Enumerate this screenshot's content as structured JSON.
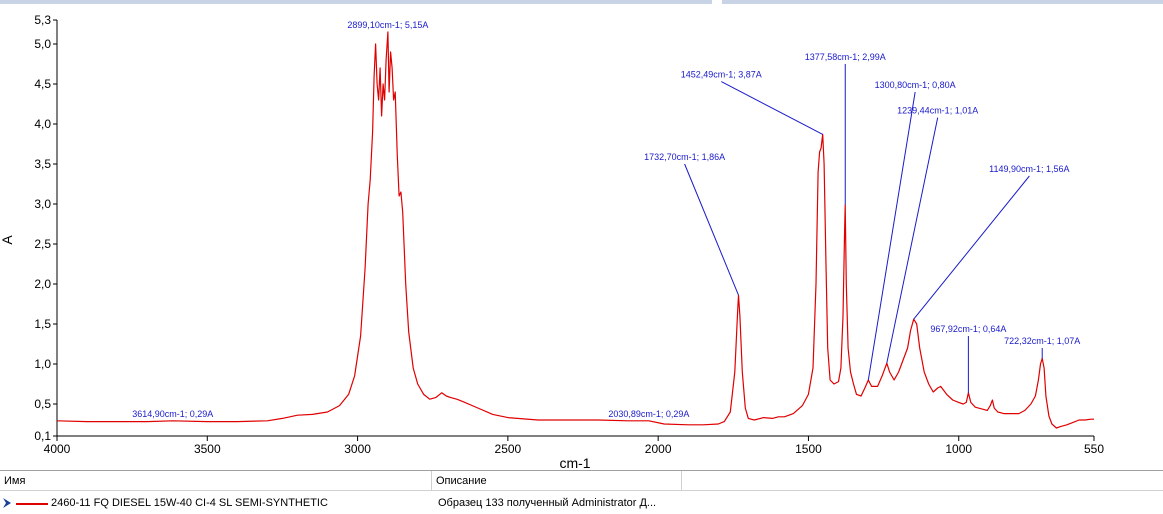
{
  "colors": {
    "series": "#e00000",
    "annotation": "#1a1acc",
    "axis": "#000000",
    "tick_label": "#000000"
  },
  "chart_data": {
    "type": "line",
    "title": "",
    "xlabel": "cm-1",
    "ylabel": "A",
    "xlim": [
      4000,
      550
    ],
    "ylim": [
      0.1,
      5.3
    ],
    "x_reversed": true,
    "grid": false,
    "xticks": [
      4000,
      3500,
      3000,
      2500,
      2000,
      1500,
      1000,
      550
    ],
    "yticks": [
      0.1,
      0.5,
      1.0,
      1.5,
      2.0,
      2.5,
      3.0,
      3.5,
      4.0,
      4.5,
      5.0,
      5.3
    ],
    "xtick_labels": [
      "4000",
      "3500",
      "3000",
      "2500",
      "2000",
      "1500",
      "1000",
      "550"
    ],
    "ytick_labels": [
      "0,1",
      "0,5",
      "1,0",
      "1,5",
      "2,0",
      "2,5",
      "3,0",
      "3,5",
      "4,0",
      "4,5",
      "5,0",
      "5,3"
    ],
    "series": [
      {
        "name": "2460-11 FQ DIESEL 15W-40 CI-4 SL SEMI-SYNTHETIC",
        "points": [
          [
            4000,
            0.29
          ],
          [
            3900,
            0.28
          ],
          [
            3800,
            0.28
          ],
          [
            3700,
            0.28
          ],
          [
            3614.9,
            0.29
          ],
          [
            3500,
            0.28
          ],
          [
            3400,
            0.28
          ],
          [
            3300,
            0.29
          ],
          [
            3250,
            0.32
          ],
          [
            3200,
            0.36
          ],
          [
            3150,
            0.37
          ],
          [
            3100,
            0.4
          ],
          [
            3060,
            0.48
          ],
          [
            3030,
            0.62
          ],
          [
            3010,
            0.85
          ],
          [
            2990,
            1.35
          ],
          [
            2975,
            2.2
          ],
          [
            2965,
            3.0
          ],
          [
            2958,
            3.3
          ],
          [
            2950,
            3.9
          ],
          [
            2945,
            4.6
          ],
          [
            2940,
            5.0
          ],
          [
            2935,
            4.5
          ],
          [
            2930,
            4.3
          ],
          [
            2925,
            4.7
          ],
          [
            2920,
            4.1
          ],
          [
            2915,
            4.5
          ],
          [
            2910,
            4.3
          ],
          [
            2905,
            4.8
          ],
          [
            2899.1,
            5.15
          ],
          [
            2895,
            4.4
          ],
          [
            2890,
            4.9
          ],
          [
            2885,
            4.7
          ],
          [
            2880,
            4.3
          ],
          [
            2875,
            4.4
          ],
          [
            2868,
            3.6
          ],
          [
            2862,
            3.1
          ],
          [
            2856,
            3.15
          ],
          [
            2850,
            2.9
          ],
          [
            2840,
            2.0
          ],
          [
            2830,
            1.4
          ],
          [
            2815,
            0.95
          ],
          [
            2800,
            0.75
          ],
          [
            2780,
            0.62
          ],
          [
            2760,
            0.56
          ],
          [
            2740,
            0.58
          ],
          [
            2720,
            0.64
          ],
          [
            2705,
            0.6
          ],
          [
            2690,
            0.58
          ],
          [
            2670,
            0.56
          ],
          [
            2650,
            0.53
          ],
          [
            2600,
            0.45
          ],
          [
            2550,
            0.37
          ],
          [
            2500,
            0.33
          ],
          [
            2400,
            0.3
          ],
          [
            2300,
            0.3
          ],
          [
            2200,
            0.3
          ],
          [
            2100,
            0.29
          ],
          [
            2030.89,
            0.29
          ],
          [
            1980,
            0.25
          ],
          [
            1900,
            0.24
          ],
          [
            1850,
            0.24
          ],
          [
            1800,
            0.25
          ],
          [
            1780,
            0.28
          ],
          [
            1760,
            0.4
          ],
          [
            1745,
            0.9
          ],
          [
            1735,
            1.7
          ],
          [
            1732.7,
            1.86
          ],
          [
            1728,
            1.6
          ],
          [
            1720,
            0.9
          ],
          [
            1710,
            0.45
          ],
          [
            1700,
            0.32
          ],
          [
            1680,
            0.3
          ],
          [
            1650,
            0.33
          ],
          [
            1620,
            0.32
          ],
          [
            1600,
            0.34
          ],
          [
            1580,
            0.34
          ],
          [
            1550,
            0.38
          ],
          [
            1520,
            0.48
          ],
          [
            1500,
            0.62
          ],
          [
            1485,
            0.95
          ],
          [
            1475,
            2.0
          ],
          [
            1468,
            3.4
          ],
          [
            1463,
            3.65
          ],
          [
            1458,
            3.7
          ],
          [
            1455,
            3.8
          ],
          [
            1452.49,
            3.87
          ],
          [
            1448,
            3.5
          ],
          [
            1442,
            2.3
          ],
          [
            1436,
            1.2
          ],
          [
            1428,
            0.8
          ],
          [
            1415,
            0.75
          ],
          [
            1400,
            0.78
          ],
          [
            1392,
            0.95
          ],
          [
            1385,
            1.6
          ],
          [
            1380,
            2.6
          ],
          [
            1377.58,
            2.99
          ],
          [
            1374,
            2.0
          ],
          [
            1368,
            1.2
          ],
          [
            1360,
            0.9
          ],
          [
            1350,
            0.75
          ],
          [
            1340,
            0.62
          ],
          [
            1325,
            0.6
          ],
          [
            1310,
            0.72
          ],
          [
            1300.8,
            0.8
          ],
          [
            1290,
            0.72
          ],
          [
            1270,
            0.72
          ],
          [
            1255,
            0.85
          ],
          [
            1239.44,
            1.01
          ],
          [
            1230,
            0.9
          ],
          [
            1215,
            0.8
          ],
          [
            1200,
            0.9
          ],
          [
            1185,
            1.05
          ],
          [
            1170,
            1.2
          ],
          [
            1160,
            1.42
          ],
          [
            1149.9,
            1.56
          ],
          [
            1140,
            1.5
          ],
          [
            1130,
            1.2
          ],
          [
            1115,
            0.9
          ],
          [
            1100,
            0.75
          ],
          [
            1085,
            0.65
          ],
          [
            1070,
            0.7
          ],
          [
            1060,
            0.72
          ],
          [
            1040,
            0.62
          ],
          [
            1020,
            0.55
          ],
          [
            1000,
            0.52
          ],
          [
            985,
            0.5
          ],
          [
            975,
            0.52
          ],
          [
            967.92,
            0.64
          ],
          [
            960,
            0.52
          ],
          [
            945,
            0.46
          ],
          [
            925,
            0.44
          ],
          [
            905,
            0.42
          ],
          [
            895,
            0.48
          ],
          [
            888,
            0.55
          ],
          [
            882,
            0.45
          ],
          [
            870,
            0.4
          ],
          [
            850,
            0.38
          ],
          [
            825,
            0.38
          ],
          [
            800,
            0.38
          ],
          [
            780,
            0.42
          ],
          [
            760,
            0.5
          ],
          [
            745,
            0.6
          ],
          [
            735,
            0.8
          ],
          [
            728,
            1.0
          ],
          [
            722.32,
            1.07
          ],
          [
            716,
            0.95
          ],
          [
            710,
            0.6
          ],
          [
            700,
            0.35
          ],
          [
            690,
            0.25
          ],
          [
            675,
            0.2
          ],
          [
            660,
            0.22
          ],
          [
            640,
            0.24
          ],
          [
            620,
            0.27
          ],
          [
            600,
            0.3
          ],
          [
            580,
            0.3
          ],
          [
            560,
            0.31
          ],
          [
            550,
            0.31
          ]
        ]
      }
    ],
    "annotations": [
      {
        "text": "2899,10cm-1; 5,15A",
        "x": 2899.1,
        "y": 5.15,
        "anchor_x": 2899.1,
        "anchor_y": 5.15
      },
      {
        "text": "1452,49cm-1; 3,87A",
        "x": 1452.49,
        "y": 3.87,
        "anchor_x": 1790,
        "anchor_y": 4.53
      },
      {
        "text": "1377,58cm-1; 2,99A",
        "x": 1377.58,
        "y": 2.99,
        "anchor_x": 1377.58,
        "anchor_y": 4.75
      },
      {
        "text": "1300,80cm-1; 0,80A",
        "x": 1300.8,
        "y": 0.8,
        "anchor_x": 1145,
        "anchor_y": 4.4
      },
      {
        "text": "1239,44cm-1; 1,01A",
        "x": 1239.44,
        "y": 1.01,
        "anchor_x": 1070,
        "anchor_y": 4.08
      },
      {
        "text": "1732,70cm-1; 1,86A",
        "x": 1732.7,
        "y": 1.86,
        "anchor_x": 1912,
        "anchor_y": 3.5
      },
      {
        "text": "1149,90cm-1; 1,56A",
        "x": 1149.9,
        "y": 1.56,
        "anchor_x": 765,
        "anchor_y": 3.35
      },
      {
        "text": "967,92cm-1; 0,64A",
        "x": 967.92,
        "y": 0.64,
        "anchor_x": 967.92,
        "anchor_y": 1.35
      },
      {
        "text": "722,32cm-1; 1,07A",
        "x": 722.32,
        "y": 1.07,
        "anchor_x": 722.32,
        "anchor_y": 1.2
      },
      {
        "text": "3614,90cm-1; 0,29A",
        "x": 3614.9,
        "y": 0.29,
        "anchor_x": 3614.9,
        "anchor_y": 0.29
      },
      {
        "text": "2030,89cm-1; 0,29A",
        "x": 2030.89,
        "y": 0.29,
        "anchor_x": 2030.89,
        "anchor_y": 0.29
      }
    ]
  },
  "legend": {
    "col_name_header": "Имя",
    "col_desc_header": "Описание",
    "row": {
      "icon": "arrow-right-icon",
      "name": "2460-11 FQ DIESEL 15W-40 CI-4 SL SEMI-SYNTHETIC",
      "description": "Образец 133 полученный Administrator Д..."
    }
  }
}
